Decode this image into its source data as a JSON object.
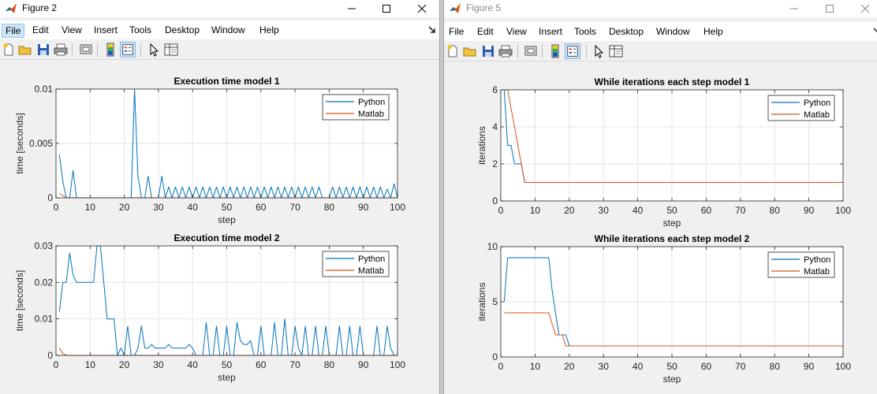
{
  "figure2": {
    "title": "Figure 2",
    "menu": [
      "File",
      "Edit",
      "View",
      "Insert",
      "Tools",
      "Desktop",
      "Window",
      "Help"
    ],
    "active_menu": "File",
    "charts": [
      {
        "id": "f2c1",
        "chart_data": {
          "type": "line",
          "title": "Execution time model 1",
          "xlabel": "step",
          "ylabel": "time [seconds]",
          "xlim": [
            0,
            100
          ],
          "ylim": [
            0,
            0.01
          ],
          "xticks": [
            0,
            10,
            20,
            30,
            40,
            50,
            60,
            70,
            80,
            90,
            100
          ],
          "yticks": [
            0,
            0.005,
            0.01
          ],
          "ytick_labels": [
            "0",
            "0.005",
            "0.01"
          ],
          "grid": true,
          "legend": "top-right",
          "series": [
            {
              "name": "Python",
              "color": "#0072bd",
              "x": [
                1,
                2,
                3,
                4,
                5,
                6,
                7,
                8,
                20,
                21,
                22,
                23,
                24,
                25,
                26,
                27,
                28,
                29,
                30,
                31,
                32,
                33,
                34,
                35,
                36,
                37,
                38,
                39,
                40,
                41,
                42,
                43,
                44,
                45,
                46,
                47,
                48,
                49,
                50,
                51,
                52,
                53,
                54,
                55,
                56,
                57,
                58,
                59,
                60,
                61,
                62,
                63,
                64,
                65,
                66,
                67,
                68,
                69,
                70,
                71,
                72,
                73,
                74,
                75,
                76,
                77,
                78,
                79,
                80,
                81,
                82,
                83,
                84,
                85,
                86,
                87,
                88,
                89,
                90,
                91,
                92,
                93,
                94,
                95,
                96,
                97,
                98,
                99,
                100
              ],
              "y": [
                0.004,
                0.0015,
                0,
                0,
                0.0025,
                0,
                0,
                0,
                0,
                0,
                0,
                0.01,
                0.002,
                0,
                0,
                0.002,
                0,
                0,
                0,
                0.002,
                0,
                0.001,
                0,
                0.001,
                0,
                0.001,
                0,
                0.001,
                0,
                0.001,
                0,
                0.001,
                0,
                0.001,
                0,
                0.001,
                0,
                0.001,
                0,
                0.001,
                0,
                0.001,
                0,
                0.001,
                0,
                0.001,
                0,
                0.001,
                0,
                0.001,
                0,
                0.001,
                0,
                0.001,
                0,
                0.001,
                0,
                0.001,
                0,
                0.001,
                0,
                0.001,
                0,
                0.001,
                0,
                0.001,
                0,
                0,
                0,
                0.001,
                0,
                0.001,
                0,
                0.001,
                0,
                0.001,
                0,
                0.001,
                0,
                0.001,
                0,
                0.001,
                0,
                0.001,
                0,
                0.0008,
                0,
                0.0013,
                0
              ]
            },
            {
              "name": "Matlab",
              "color": "#d95319",
              "x": [
                1,
                2,
                3,
                100
              ],
              "y": [
                0.0004,
                0.0002,
                0,
                0
              ]
            }
          ]
        }
      },
      {
        "id": "f2c2",
        "chart_data": {
          "type": "line",
          "title": "Execution time model 2",
          "xlabel": "step",
          "ylabel": "time [seconds]",
          "xlim": [
            0,
            100
          ],
          "ylim": [
            0,
            0.03
          ],
          "xticks": [
            0,
            10,
            20,
            30,
            40,
            50,
            60,
            70,
            80,
            90,
            100
          ],
          "yticks": [
            0,
            0.01,
            0.02,
            0.03
          ],
          "ytick_labels": [
            "0",
            "0.01",
            "0.02",
            "0.03"
          ],
          "grid": true,
          "legend": "top-right",
          "series": [
            {
              "name": "Python",
              "color": "#0072bd",
              "x": [
                1,
                2,
                3,
                4,
                5,
                6,
                7,
                8,
                9,
                10,
                11,
                12,
                13,
                14,
                15,
                16,
                17,
                18,
                19,
                20,
                21,
                22,
                23,
                24,
                25,
                26,
                27,
                28,
                29,
                30,
                31,
                32,
                33,
                34,
                35,
                36,
                37,
                38,
                39,
                40,
                41,
                42,
                43,
                44,
                45,
                46,
                47,
                48,
                49,
                50,
                51,
                52,
                53,
                54,
                55,
                56,
                57,
                58,
                59,
                60,
                61,
                62,
                63,
                64,
                65,
                66,
                67,
                68,
                69,
                70,
                71,
                72,
                73,
                74,
                75,
                76,
                77,
                78,
                79,
                80,
                81,
                82,
                83,
                84,
                85,
                86,
                87,
                88,
                89,
                90,
                91,
                92,
                93,
                94,
                95,
                96,
                97,
                98,
                99
              ],
              "y": [
                0.012,
                0.02,
                0.02,
                0.028,
                0.022,
                0.02,
                0.02,
                0.02,
                0.02,
                0.02,
                0.02,
                0.03,
                0.03,
                0.02,
                0.01,
                0.01,
                0.01,
                0,
                0.002,
                0,
                0.008,
                0,
                0,
                0.002,
                0.008,
                0.002,
                0.002,
                0.003,
                0.002,
                0.002,
                0.002,
                0.002,
                0.003,
                0.002,
                0.002,
                0.002,
                0.002,
                0.002,
                0.003,
                0.002,
                0,
                0,
                0,
                0.009,
                0,
                0,
                0.008,
                0,
                0,
                0.008,
                0,
                0,
                0.009,
                0.004,
                0.003,
                0.003,
                0.004,
                0,
                0,
                0.008,
                0,
                0,
                0,
                0.009,
                0,
                0,
                0.01,
                0,
                0,
                0.008,
                0.002,
                0,
                0.008,
                0,
                0,
                0.008,
                0,
                0,
                0.008,
                0,
                0,
                0,
                0.008,
                0,
                0,
                0.008,
                0,
                0,
                0.008,
                0,
                0,
                0,
                0,
                0.008,
                0,
                0,
                0.008,
                0.002,
                0
              ]
            },
            {
              "name": "Matlab",
              "color": "#d95319",
              "x": [
                1,
                2,
                3,
                100
              ],
              "y": [
                0.002,
                0.0005,
                0,
                0
              ]
            }
          ]
        }
      }
    ]
  },
  "figure5": {
    "title": "Figure 5",
    "menu": [
      "File",
      "Edit",
      "View",
      "Insert",
      "Tools",
      "Desktop",
      "Window",
      "Help"
    ],
    "charts": [
      {
        "id": "f5c1",
        "chart_data": {
          "type": "line",
          "title": "While iterations each step model 1",
          "xlabel": "step",
          "ylabel": "iterations",
          "xlim": [
            0,
            100
          ],
          "ylim": [
            0,
            6
          ],
          "xticks": [
            0,
            10,
            20,
            30,
            40,
            50,
            60,
            70,
            80,
            90,
            100
          ],
          "yticks": [
            0,
            2,
            4,
            6
          ],
          "ytick_labels": [
            "0",
            "2",
            "4",
            "6"
          ],
          "grid": true,
          "legend": "top-right",
          "series": [
            {
              "name": "Python",
              "color": "#0072bd",
              "x": [
                1,
                2,
                3,
                4,
                5,
                6,
                7,
                100
              ],
              "y": [
                6,
                3,
                3,
                2,
                2,
                2,
                1,
                1
              ]
            },
            {
              "name": "Matlab",
              "color": "#d95319",
              "x": [
                1,
                2,
                3,
                4,
                5,
                6,
                7,
                100
              ],
              "y": [
                6,
                6,
                5,
                4,
                3,
                2,
                1,
                1
              ]
            }
          ]
        }
      },
      {
        "id": "f5c2",
        "chart_data": {
          "type": "line",
          "title": "While iterations each step model 2",
          "xlabel": "step",
          "ylabel": "iterations",
          "xlim": [
            0,
            100
          ],
          "ylim": [
            0,
            10
          ],
          "xticks": [
            0,
            10,
            20,
            30,
            40,
            50,
            60,
            70,
            80,
            90,
            100
          ],
          "yticks": [
            0,
            5,
            10
          ],
          "ytick_labels": [
            "0",
            "5",
            "10"
          ],
          "grid": true,
          "legend": "top-right",
          "series": [
            {
              "name": "Python",
              "color": "#0072bd",
              "x": [
                1,
                2,
                14,
                15,
                16,
                17,
                18,
                19,
                20,
                100
              ],
              "y": [
                5,
                9,
                9,
                6,
                4,
                2,
                2,
                2,
                1,
                1
              ]
            },
            {
              "name": "Matlab",
              "color": "#d95319",
              "x": [
                1,
                14,
                15,
                16,
                17,
                18,
                19,
                20,
                100
              ],
              "y": [
                4,
                4,
                3,
                2,
                2,
                2,
                1,
                1,
                1
              ]
            }
          ]
        }
      }
    ]
  }
}
